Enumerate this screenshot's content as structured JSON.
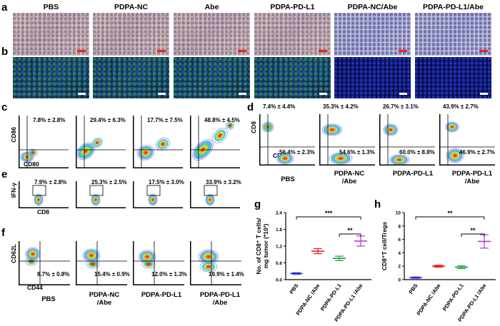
{
  "panels": {
    "a": "a",
    "b": "b",
    "c": "c",
    "d": "d",
    "e": "e",
    "f": "f",
    "g": "g",
    "h": "h"
  },
  "headers": [
    "PBS",
    "PDPA-NC",
    "Abe",
    "PDPA-PD-L1",
    "PDPA-NC/Abe",
    "PDPA-PD-L1/Abe"
  ],
  "ihc_style": [
    "brown",
    "brown",
    "brown",
    "brown",
    "blue",
    "blue"
  ],
  "fluo_style": [
    "normal",
    "normal",
    "normal",
    "normal",
    "dark",
    "dark"
  ],
  "c": {
    "y_axis": "CD86",
    "x_axis": "CD80",
    "values": [
      "7.8% ± 2.8%",
      "29.4% ± 6.3%",
      "17.7% ± 7.5%",
      "48.8% ± 4.5%"
    ]
  },
  "d": {
    "y_axis": "CD8",
    "x_axis": "CD4",
    "top_values": [
      "7.4% ± 4.4%",
      "35.3% ± 4.2%",
      "26.7% ± 3.1%",
      "43.9% ± 2.7%"
    ],
    "bottom_values": [
      "56.4% ± 2.3%",
      "54.6% ± 1.3%",
      "60.0% ± 8.8%",
      "46.9% ± 2.7%"
    ],
    "labels": [
      "PBS",
      "PDPA-NC\n/Abe",
      "PDPA-PD-L1",
      "PDPA-PD-L1\n/Abe"
    ]
  },
  "e": {
    "y_axis": "IFN-γ",
    "x_axis": "CD8",
    "values": [
      "7.9% ± 2.8%",
      "25.3% ± 2.5%",
      "17.5% ± 3.0%",
      "33.9% ± 3.2%"
    ]
  },
  "f": {
    "y_axis": "CD62L",
    "x_axis": "CD44",
    "values": [
      "8.7% ± 0.8%",
      "15.4% ± 0.9%",
      "12.0% ± 1.3%",
      "19.9% ± 1.4%"
    ],
    "labels": [
      "PBS",
      "PDPA-NC\n/Abe",
      "PDPA-PD-L1",
      "PDPA-PD-L1\n/Abe"
    ]
  },
  "chart_data": [
    {
      "type": "scatter",
      "title": "",
      "ylabel": "No. of CD8⁺ T cells/ mg tumor (*10³)",
      "categories": [
        "PBS",
        "PDPA-NC /Abe",
        "PDPA-PD-L1",
        "PDPA-PD-L1 /Abe"
      ],
      "values": [
        0.22,
        1.02,
        0.76,
        1.38
      ],
      "errors": [
        0.03,
        0.09,
        0.08,
        0.18
      ],
      "colors": [
        "#2b3bd6",
        "#e8261c",
        "#1f9e3a",
        "#b23bd0"
      ],
      "ylim": [
        0,
        2.4
      ],
      "yticks": [
        "0.0",
        "0.6",
        "1.2",
        "1.8",
        "2.4"
      ],
      "yticks_num": [
        0,
        0.6,
        1.2,
        1.8,
        2.4
      ],
      "significance": [
        {
          "from": 0,
          "to": 3,
          "label": "***"
        },
        {
          "from": 2,
          "to": 3,
          "label": "**"
        }
      ]
    },
    {
      "type": "scatter",
      "title": "",
      "ylabel": "CD8⁺T cell/Tregs",
      "categories": [
        "PBS",
        "PDPA-NC /Abe",
        "PDPA-PD-L1",
        "PDPA-PD-L1 /Abe"
      ],
      "values": [
        0.3,
        2.0,
        1.85,
        5.7
      ],
      "errors": [
        0.1,
        0.15,
        0.2,
        1.0
      ],
      "colors": [
        "#2b3bd6",
        "#e8261c",
        "#1f9e3a",
        "#b23bd0"
      ],
      "ylim": [
        0,
        10
      ],
      "yticks": [
        "0",
        "2",
        "4",
        "6",
        "8",
        "10"
      ],
      "yticks_num": [
        0,
        2,
        4,
        6,
        8,
        10
      ],
      "significance": [
        {
          "from": 0,
          "to": 3,
          "label": "**"
        },
        {
          "from": 2,
          "to": 3,
          "label": "**"
        }
      ]
    }
  ]
}
